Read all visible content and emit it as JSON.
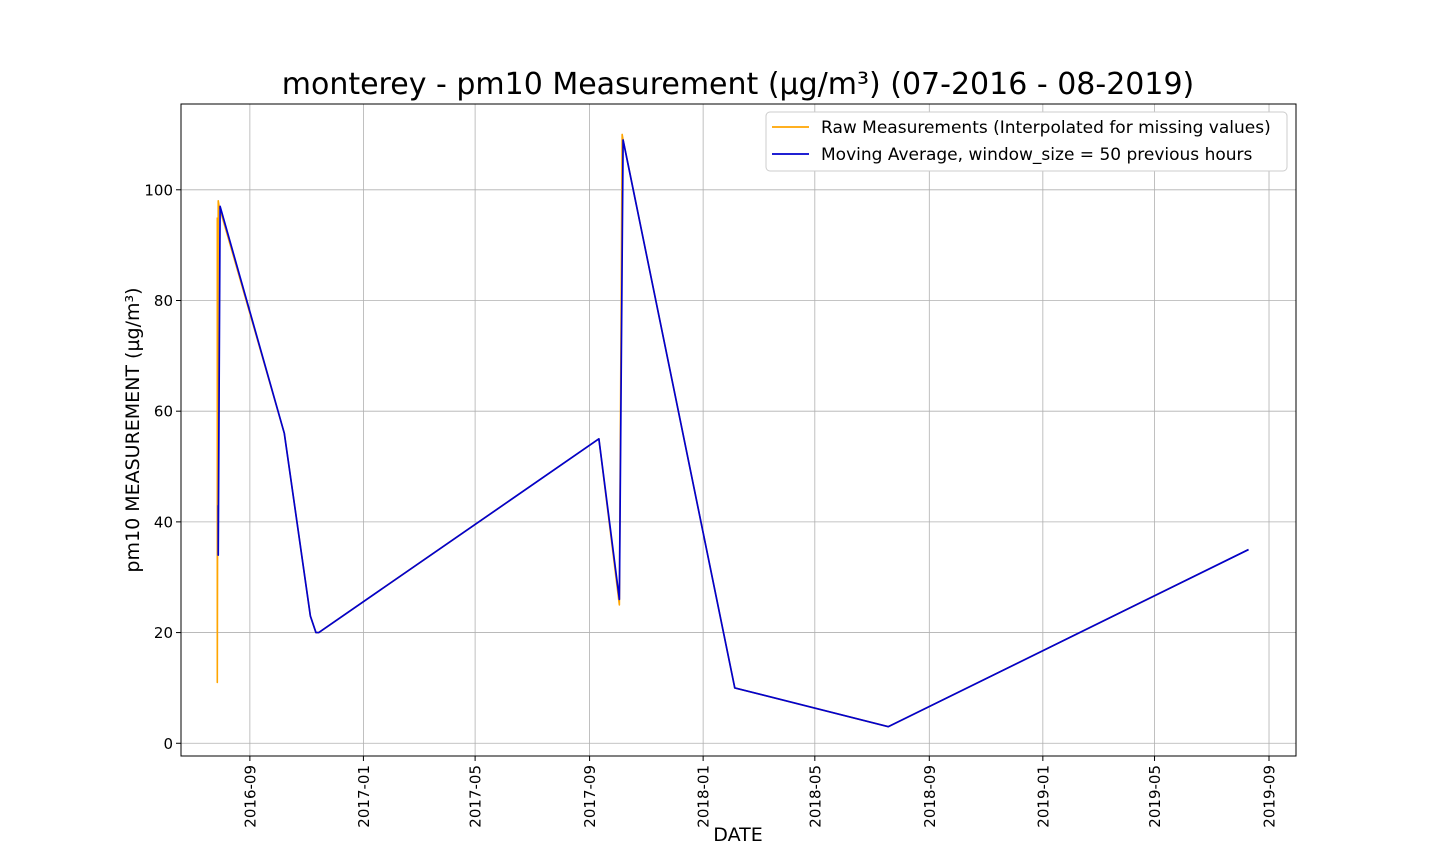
{
  "chart_data": {
    "type": "line",
    "title": "monterey - pm10 Measurement (µg/m³) (07-2016 - 08-2019)",
    "xlabel": "DATE",
    "ylabel": "pm10 MEASUREMENT (µg/m³)",
    "xlim": [
      "2016-06-19",
      "2019-09-30"
    ],
    "ylim": [
      -2.3,
      115.5
    ],
    "grid": true,
    "legend_position": "top-right",
    "x_ticks": [
      "2016-09",
      "2017-01",
      "2017-05",
      "2017-09",
      "2018-01",
      "2018-05",
      "2018-09",
      "2019-01",
      "2019-05",
      "2019-09"
    ],
    "y_ticks": [
      0,
      20,
      40,
      60,
      80,
      100
    ],
    "series": [
      {
        "name": "Raw Measurements (Interpolated for missing values)",
        "color": "#FFA500",
        "points": [
          [
            "2016-07-28",
            95
          ],
          [
            "2016-07-28",
            11
          ],
          [
            "2016-07-29",
            98
          ],
          [
            "2016-07-30",
            97
          ],
          [
            "2016-10-08",
            56
          ],
          [
            "2016-11-05",
            23
          ],
          [
            "2016-11-11",
            20
          ],
          [
            "2016-11-14",
            20
          ],
          [
            "2017-09-11",
            55
          ],
          [
            "2017-10-03",
            25
          ],
          [
            "2017-10-06",
            110
          ],
          [
            "2017-10-07",
            109
          ],
          [
            "2018-02-04",
            10
          ],
          [
            "2018-07-19",
            3
          ],
          [
            "2019-08-10",
            35
          ]
        ]
      },
      {
        "name": "Moving Average, window_size = 50 previous hours",
        "color": "#0000CD",
        "points": [
          [
            "2016-07-29",
            43
          ],
          [
            "2016-07-29",
            34
          ],
          [
            "2016-07-31",
            97
          ],
          [
            "2016-10-08",
            56
          ],
          [
            "2016-11-05",
            23
          ],
          [
            "2016-11-11",
            20
          ],
          [
            "2016-11-14",
            20
          ],
          [
            "2017-09-11",
            55
          ],
          [
            "2017-10-03",
            26
          ],
          [
            "2017-10-07",
            109
          ],
          [
            "2018-02-04",
            10
          ],
          [
            "2018-07-19",
            3
          ],
          [
            "2019-08-10",
            35
          ]
        ]
      }
    ]
  }
}
